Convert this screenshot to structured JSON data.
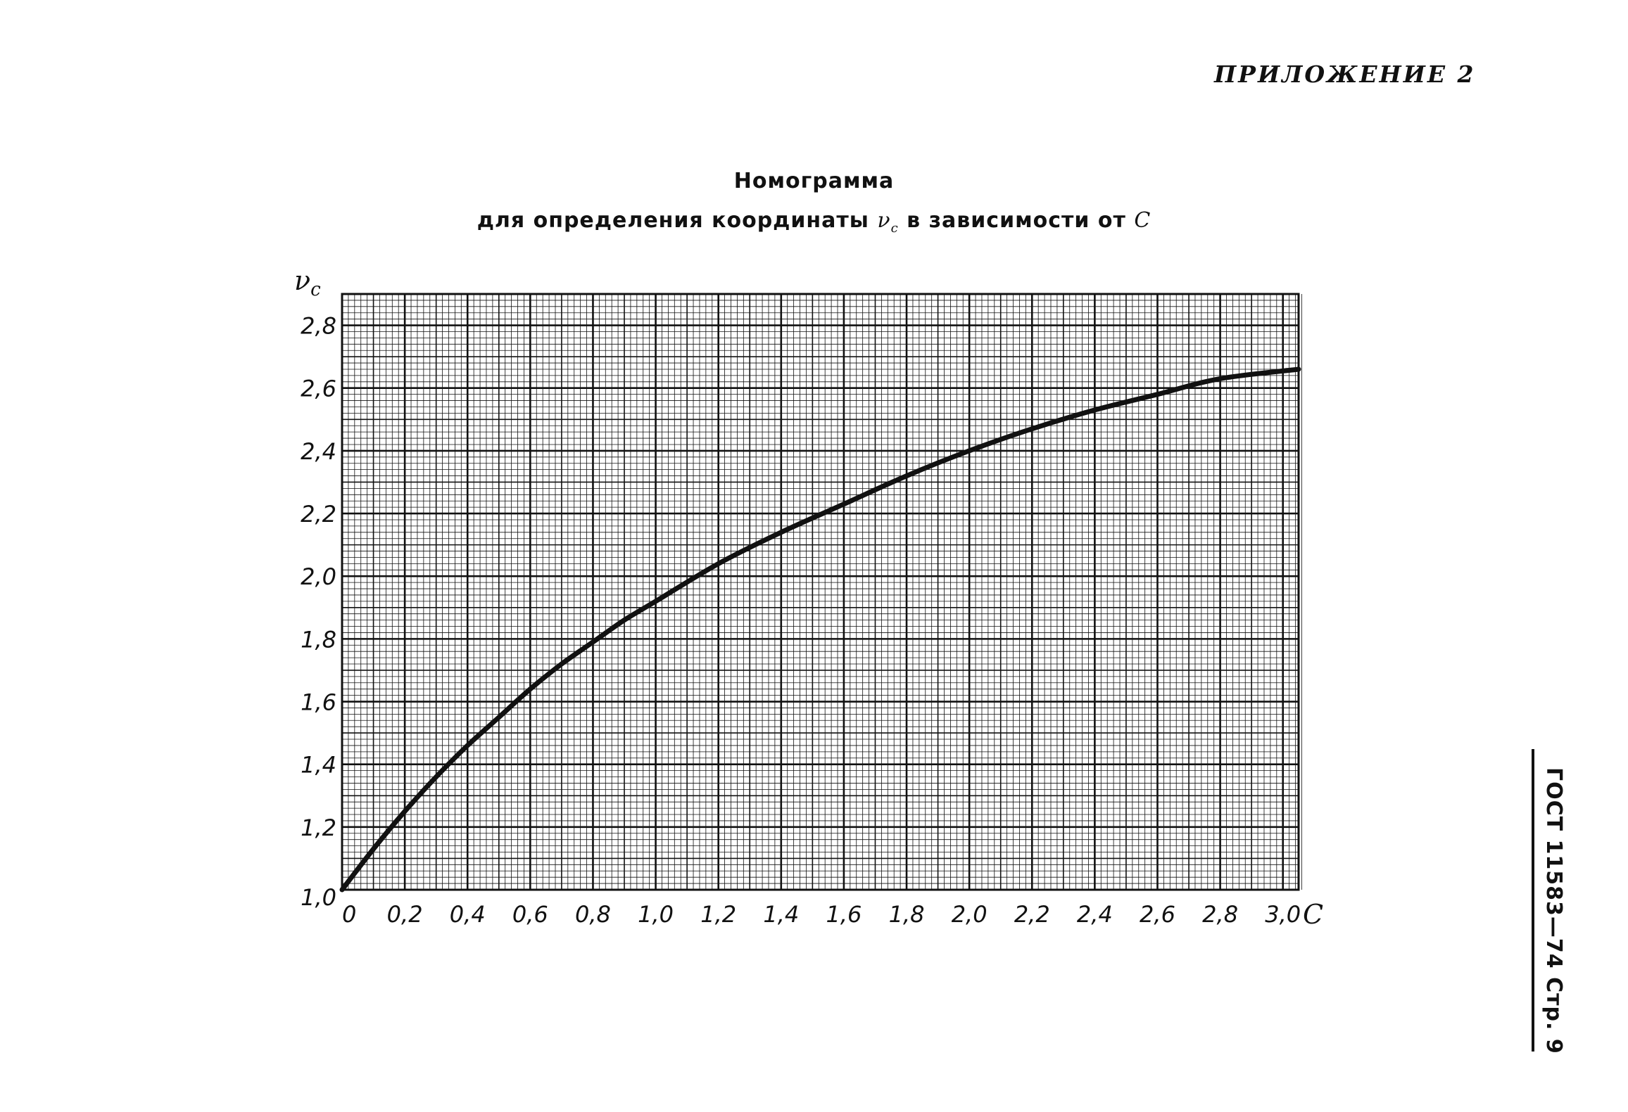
{
  "header": {
    "appendix": "ПРИЛОЖЕНИЕ 2"
  },
  "side_stamp": "ГОСТ 11583—74 Стр. 9",
  "colors": {
    "ink": "#111111",
    "grid": "#111111",
    "paper": "#ffffff"
  },
  "chart_data": {
    "type": "line",
    "title": "Номограмма",
    "subtitle_prefix": "для определения координаты",
    "subtitle_symbol": "ν",
    "subtitle_symbol_sub": "c",
    "subtitle_middle": "в зависимости от",
    "subtitle_var": "C",
    "xlabel": "C",
    "ylabel": "ν",
    "ylabel_sub": "c",
    "xlim": [
      0,
      3.05
    ],
    "ylim": [
      1.0,
      2.9
    ],
    "grid": true,
    "x_ticks": [
      {
        "value": 0.0,
        "label": "0"
      },
      {
        "value": 0.2,
        "label": "0,2"
      },
      {
        "value": 0.4,
        "label": "0,4"
      },
      {
        "value": 0.6,
        "label": "0,6"
      },
      {
        "value": 0.8,
        "label": "0,8"
      },
      {
        "value": 1.0,
        "label": "1,0"
      },
      {
        "value": 1.2,
        "label": "1,2"
      },
      {
        "value": 1.4,
        "label": "1,4"
      },
      {
        "value": 1.6,
        "label": "1,6"
      },
      {
        "value": 1.8,
        "label": "1,8"
      },
      {
        "value": 2.0,
        "label": "2,0"
      },
      {
        "value": 2.2,
        "label": "2,2"
      },
      {
        "value": 2.4,
        "label": "2,4"
      },
      {
        "value": 2.6,
        "label": "2,6"
      },
      {
        "value": 2.8,
        "label": "2,8"
      },
      {
        "value": 3.0,
        "label": "3,0"
      }
    ],
    "y_ticks": [
      {
        "value": 1.0,
        "label": "1,0"
      },
      {
        "value": 1.2,
        "label": "1,2"
      },
      {
        "value": 1.4,
        "label": "1,4"
      },
      {
        "value": 1.6,
        "label": "1,6"
      },
      {
        "value": 1.8,
        "label": "1,8"
      },
      {
        "value": 2.0,
        "label": "2,0"
      },
      {
        "value": 2.2,
        "label": "2,2"
      },
      {
        "value": 2.4,
        "label": "2,4"
      },
      {
        "value": 2.6,
        "label": "2,6"
      },
      {
        "value": 2.8,
        "label": "2,8"
      }
    ],
    "series": [
      {
        "x": [
          0.0,
          0.1,
          0.2,
          0.3,
          0.4,
          0.5,
          0.6,
          0.7,
          0.8,
          0.9,
          1.0,
          1.2,
          1.4,
          1.6,
          1.8,
          2.0,
          2.2,
          2.4,
          2.6,
          2.8,
          3.05
        ],
        "y": [
          1.0,
          1.13,
          1.25,
          1.36,
          1.46,
          1.55,
          1.64,
          1.72,
          1.79,
          1.86,
          1.92,
          2.04,
          2.14,
          2.23,
          2.32,
          2.4,
          2.47,
          2.53,
          2.58,
          2.63,
          2.66
        ]
      }
    ]
  }
}
